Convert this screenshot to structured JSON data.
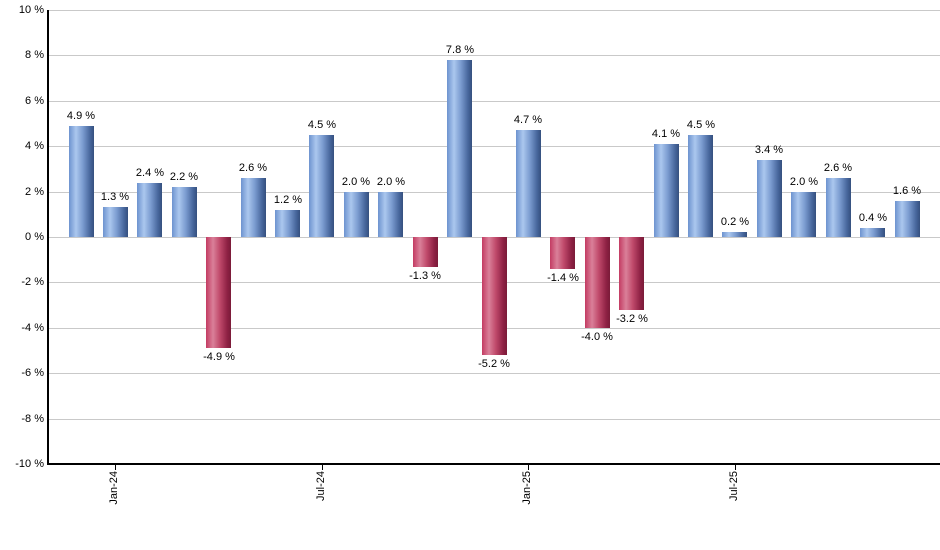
{
  "chart_data": {
    "type": "bar",
    "title": "",
    "xlabel": "",
    "ylabel": "",
    "ylim": [
      -10,
      10
    ],
    "grid": true,
    "legend": false,
    "y_tick_labels": [
      "10 %",
      "8 %",
      "6 %",
      "4 %",
      "2 %",
      "0 %",
      "-2 %",
      "-4 %",
      "-6 %",
      "-8 %",
      "-10 %"
    ],
    "values": [
      4.9,
      1.3,
      2.4,
      2.2,
      -4.9,
      2.6,
      1.2,
      4.5,
      2.0,
      2.0,
      -1.3,
      7.8,
      -5.2,
      4.7,
      -1.4,
      -4.0,
      -3.2,
      4.1,
      4.5,
      0.2,
      3.4,
      2.0,
      2.6,
      0.4,
      1.6
    ],
    "bar_labels": [
      "4.9 %",
      "1.3 %",
      "2.4 %",
      "2.2 %",
      "-4.9 %",
      "2.6 %",
      "1.2 %",
      "4.5 %",
      "2.0 %",
      "2.0 %",
      "-1.3 %",
      "7.8 %",
      "-5.2 %",
      "4.7 %",
      "-1.4 %",
      "-4.0 %",
      "-3.2 %",
      "4.1 %",
      "4.5 %",
      "0.2 %",
      "3.4 %",
      "2.0 %",
      "2.6 %",
      "0.4 %",
      "1.6 %"
    ],
    "x_ticks": [
      {
        "index": 1,
        "label": "Jan-24"
      },
      {
        "index": 7,
        "label": "Jul-24"
      },
      {
        "index": 13,
        "label": "Jan-25"
      },
      {
        "index": 19,
        "label": "Jul-25"
      }
    ],
    "colors": {
      "positive_gradient": [
        "#6d93cf",
        "#abc7ee",
        "#7b9cd0",
        "#46659b",
        "#35507e"
      ],
      "negative_gradient": [
        "#c33b62",
        "#da8099",
        "#c04a6b",
        "#8e2144",
        "#7a1b38"
      ],
      "gridline": "#c9c9c9",
      "axis": "#000000",
      "label": "#000000"
    }
  }
}
